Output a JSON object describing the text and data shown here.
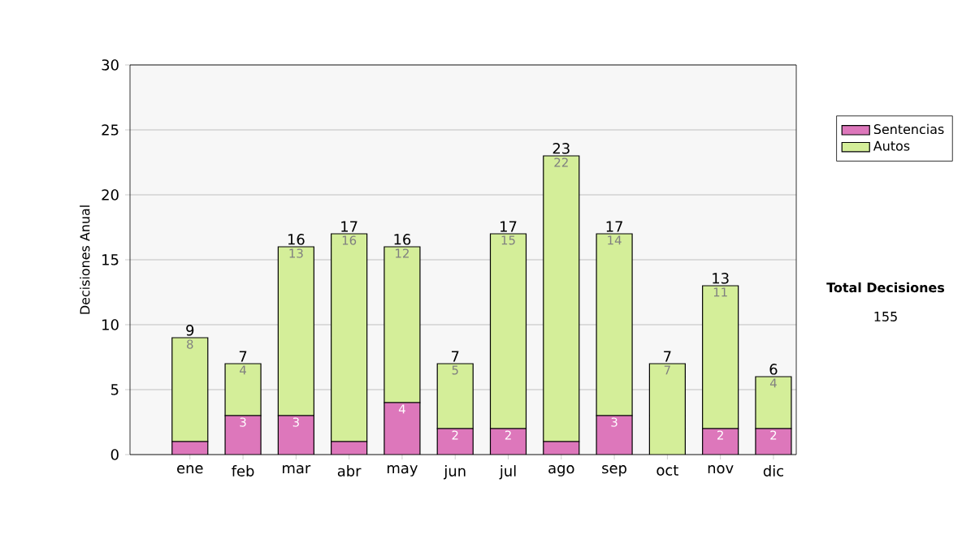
{
  "chart_data": {
    "type": "bar",
    "stacked": true,
    "ylabel": "Decisiones Anual",
    "categories": [
      "ene",
      "feb",
      "mar",
      "abr",
      "may",
      "jun",
      "jul",
      "ago",
      "sep",
      "oct",
      "nov",
      "dic"
    ],
    "series": [
      {
        "name": "Sentencias",
        "color": "#dd77bb",
        "values": [
          1,
          3,
          3,
          1,
          4,
          2,
          2,
          1,
          3,
          0,
          2,
          2
        ],
        "value_labels": [
          null,
          "3",
          "3",
          null,
          "4",
          "2",
          "2",
          null,
          "3",
          null,
          "2",
          "2"
        ]
      },
      {
        "name": "Autos",
        "color": "#d4ee99",
        "values": [
          8,
          4,
          13,
          16,
          12,
          5,
          15,
          22,
          14,
          7,
          11,
          4
        ],
        "value_labels": [
          "8",
          "4",
          "13",
          "16",
          "12",
          "5",
          "15",
          "22",
          "14",
          "7",
          "11",
          "4"
        ]
      }
    ],
    "totals": [
      "9",
      "7",
      "16",
      "17",
      "16",
      "7",
      "17",
      "23",
      "17",
      "7",
      "13",
      "6"
    ],
    "ylim": [
      0,
      30
    ],
    "yticks": [
      0,
      5,
      10,
      15,
      20,
      25,
      30
    ],
    "grid": "y",
    "legend": "right",
    "annotations": [
      "Total Decisiones",
      "155"
    ]
  }
}
